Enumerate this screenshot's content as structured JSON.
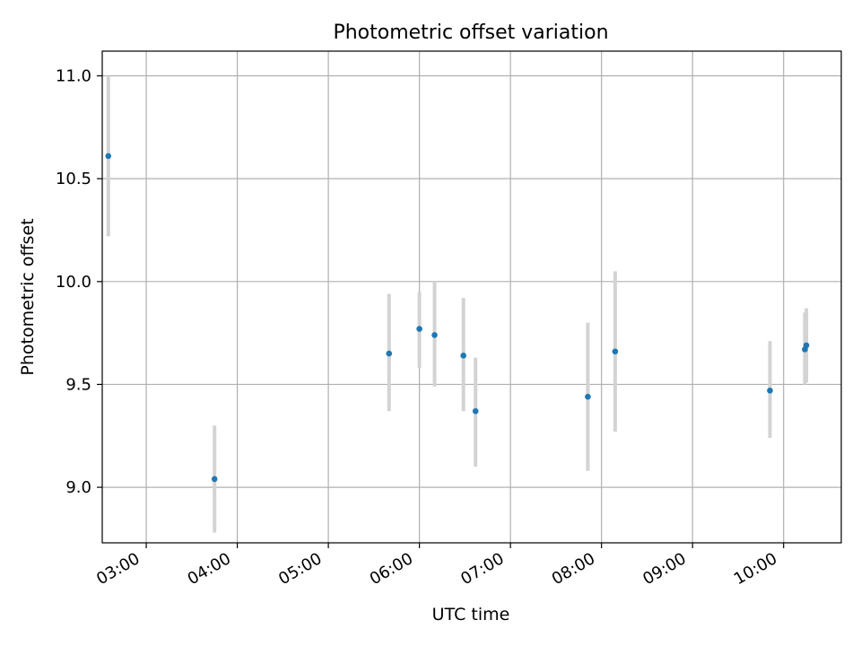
{
  "chart_data": {
    "type": "scatter",
    "title": "Photometric offset variation",
    "xlabel": "UTC time",
    "ylabel": "Photometric offset",
    "x_ticks": [
      "03:00",
      "04:00",
      "05:00",
      "06:00",
      "07:00",
      "08:00",
      "09:00",
      "10:00"
    ],
    "y_ticks": [
      "9.0",
      "9.5",
      "10.0",
      "10.5",
      "11.0"
    ],
    "xlim": [
      "02:31",
      "10:38"
    ],
    "ylim": [
      8.73,
      11.12
    ],
    "grid": true,
    "marker_color": "#1f77b4",
    "errorbar_color": "#d3d3d3",
    "points": [
      {
        "x": "02:35",
        "y": 10.61,
        "yerr_low": 10.22,
        "yerr_high": 11.0
      },
      {
        "x": "03:45",
        "y": 9.04,
        "yerr_low": 8.78,
        "yerr_high": 9.3
      },
      {
        "x": "05:40",
        "y": 9.65,
        "yerr_low": 9.37,
        "yerr_high": 9.94
      },
      {
        "x": "06:00",
        "y": 9.77,
        "yerr_low": 9.58,
        "yerr_high": 9.95
      },
      {
        "x": "06:10",
        "y": 9.74,
        "yerr_low": 9.49,
        "yerr_high": 10.0
      },
      {
        "x": "06:29",
        "y": 9.64,
        "yerr_low": 9.37,
        "yerr_high": 9.92
      },
      {
        "x": "06:37",
        "y": 9.37,
        "yerr_low": 9.1,
        "yerr_high": 9.63
      },
      {
        "x": "07:51",
        "y": 9.44,
        "yerr_low": 9.08,
        "yerr_high": 9.8
      },
      {
        "x": "08:09",
        "y": 9.66,
        "yerr_low": 9.27,
        "yerr_high": 10.05
      },
      {
        "x": "09:51",
        "y": 9.47,
        "yerr_low": 9.24,
        "yerr_high": 9.71
      },
      {
        "x": "10:14",
        "y": 9.67,
        "yerr_low": 9.5,
        "yerr_high": 9.85
      },
      {
        "x": "10:15",
        "y": 9.69,
        "yerr_low": 9.51,
        "yerr_high": 9.87
      }
    ]
  }
}
